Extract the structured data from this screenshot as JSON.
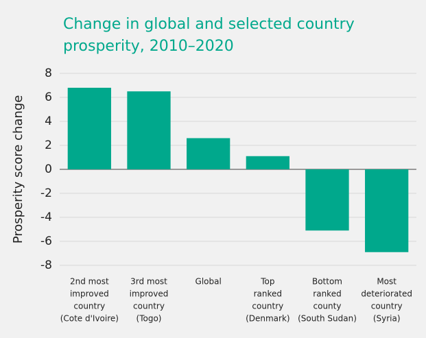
{
  "chart_data": {
    "type": "bar",
    "title": "Change in global and selected country prosperity, 2010–2020",
    "y_label": "Prosperity score change",
    "categories": [
      [
        "2nd most",
        "improved",
        "country",
        "(Cote d'Ivoire)"
      ],
      [
        "3rd most",
        "improved",
        "country",
        "(Togo)"
      ],
      [
        "Global"
      ],
      [
        "Top",
        "ranked",
        "country",
        "(Denmark)"
      ],
      [
        "Bottom",
        "ranked",
        "county",
        "(South Sudan)"
      ],
      [
        "Most",
        "deteriorated",
        "country",
        "(Syria)"
      ]
    ],
    "values": [
      6.8,
      6.5,
      2.6,
      1.1,
      -5.1,
      -6.9
    ],
    "color": "#00a88c",
    "ylim": [
      -8,
      8
    ],
    "yticks": [
      -8,
      -6,
      -4,
      -2,
      0,
      2,
      4,
      6,
      8
    ],
    "grid": true
  }
}
